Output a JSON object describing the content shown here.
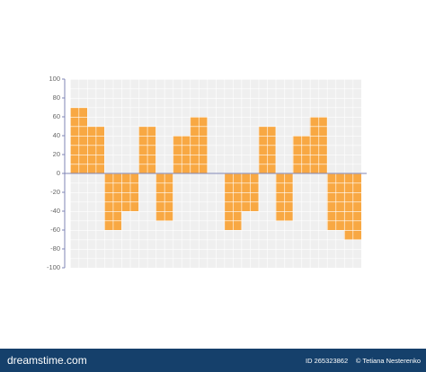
{
  "chart_data": {
    "type": "bar",
    "values": [
      70,
      50,
      -60,
      -40,
      50,
      -50,
      40,
      60,
      0,
      -60,
      -40,
      50,
      -50,
      40,
      60,
      -60,
      -70
    ],
    "color": "#f8a843",
    "ylim": [
      -100,
      100
    ],
    "yticks": [
      -100,
      -80,
      -60,
      -40,
      -20,
      0,
      20,
      40,
      60,
      80,
      100
    ],
    "grid": true
  },
  "footer": {
    "site": "dreamstime.com",
    "id": "ID 265323862",
    "credit": "© Tetiana Nesterenko"
  }
}
